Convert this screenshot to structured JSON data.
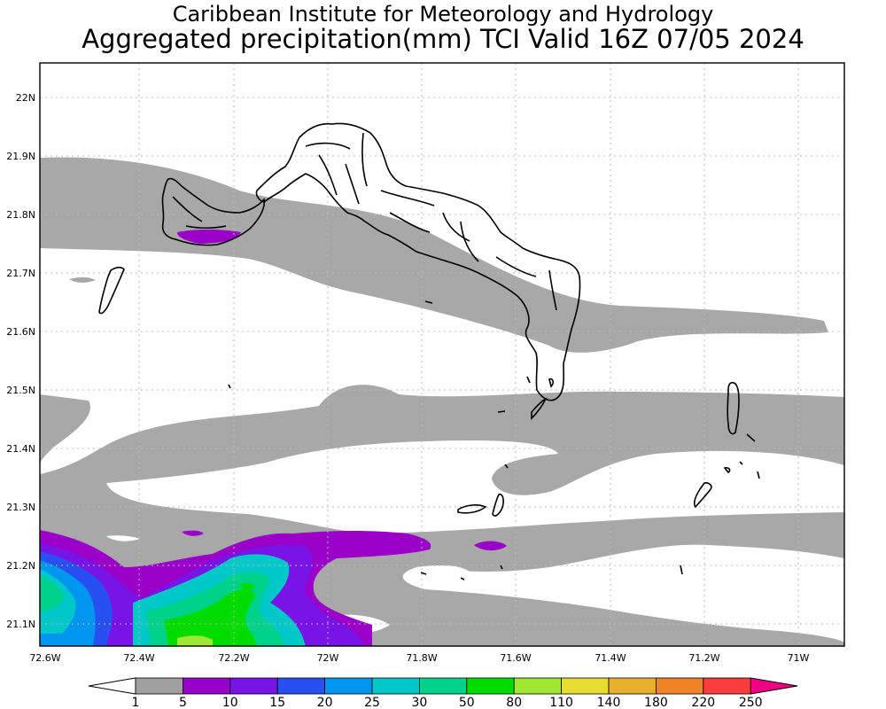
{
  "title": {
    "line1": "Caribbean Institute for Meteorology and Hydrology",
    "line2": "Aggregated precipitation(mm) TCI Valid 16Z 07/05 2024"
  },
  "map": {
    "lat_ticks": [
      "22N",
      "21.9N",
      "21.8N",
      "21.7N",
      "21.6N",
      "21.5N",
      "21.4N",
      "21.3N",
      "21.2N",
      "21.1N"
    ],
    "lon_ticks": [
      "72.6W",
      "72.4W",
      "72.2W",
      "72W",
      "71.8W",
      "71.6W",
      "71.4W",
      "71.2W",
      "71W"
    ]
  },
  "colorbar": {
    "labels": [
      "1",
      "5",
      "10",
      "15",
      "20",
      "25",
      "30",
      "50",
      "80",
      "110",
      "140",
      "180",
      "220",
      "250"
    ],
    "colors": [
      "#a0a0a0",
      "#9600c8",
      "#7814e6",
      "#2850f0",
      "#0096f0",
      "#00c8c8",
      "#00d28c",
      "#00dc00",
      "#a0e632",
      "#e6dc32",
      "#e6af2d",
      "#f08228",
      "#fa3c3c",
      "#f00082"
    ]
  }
}
